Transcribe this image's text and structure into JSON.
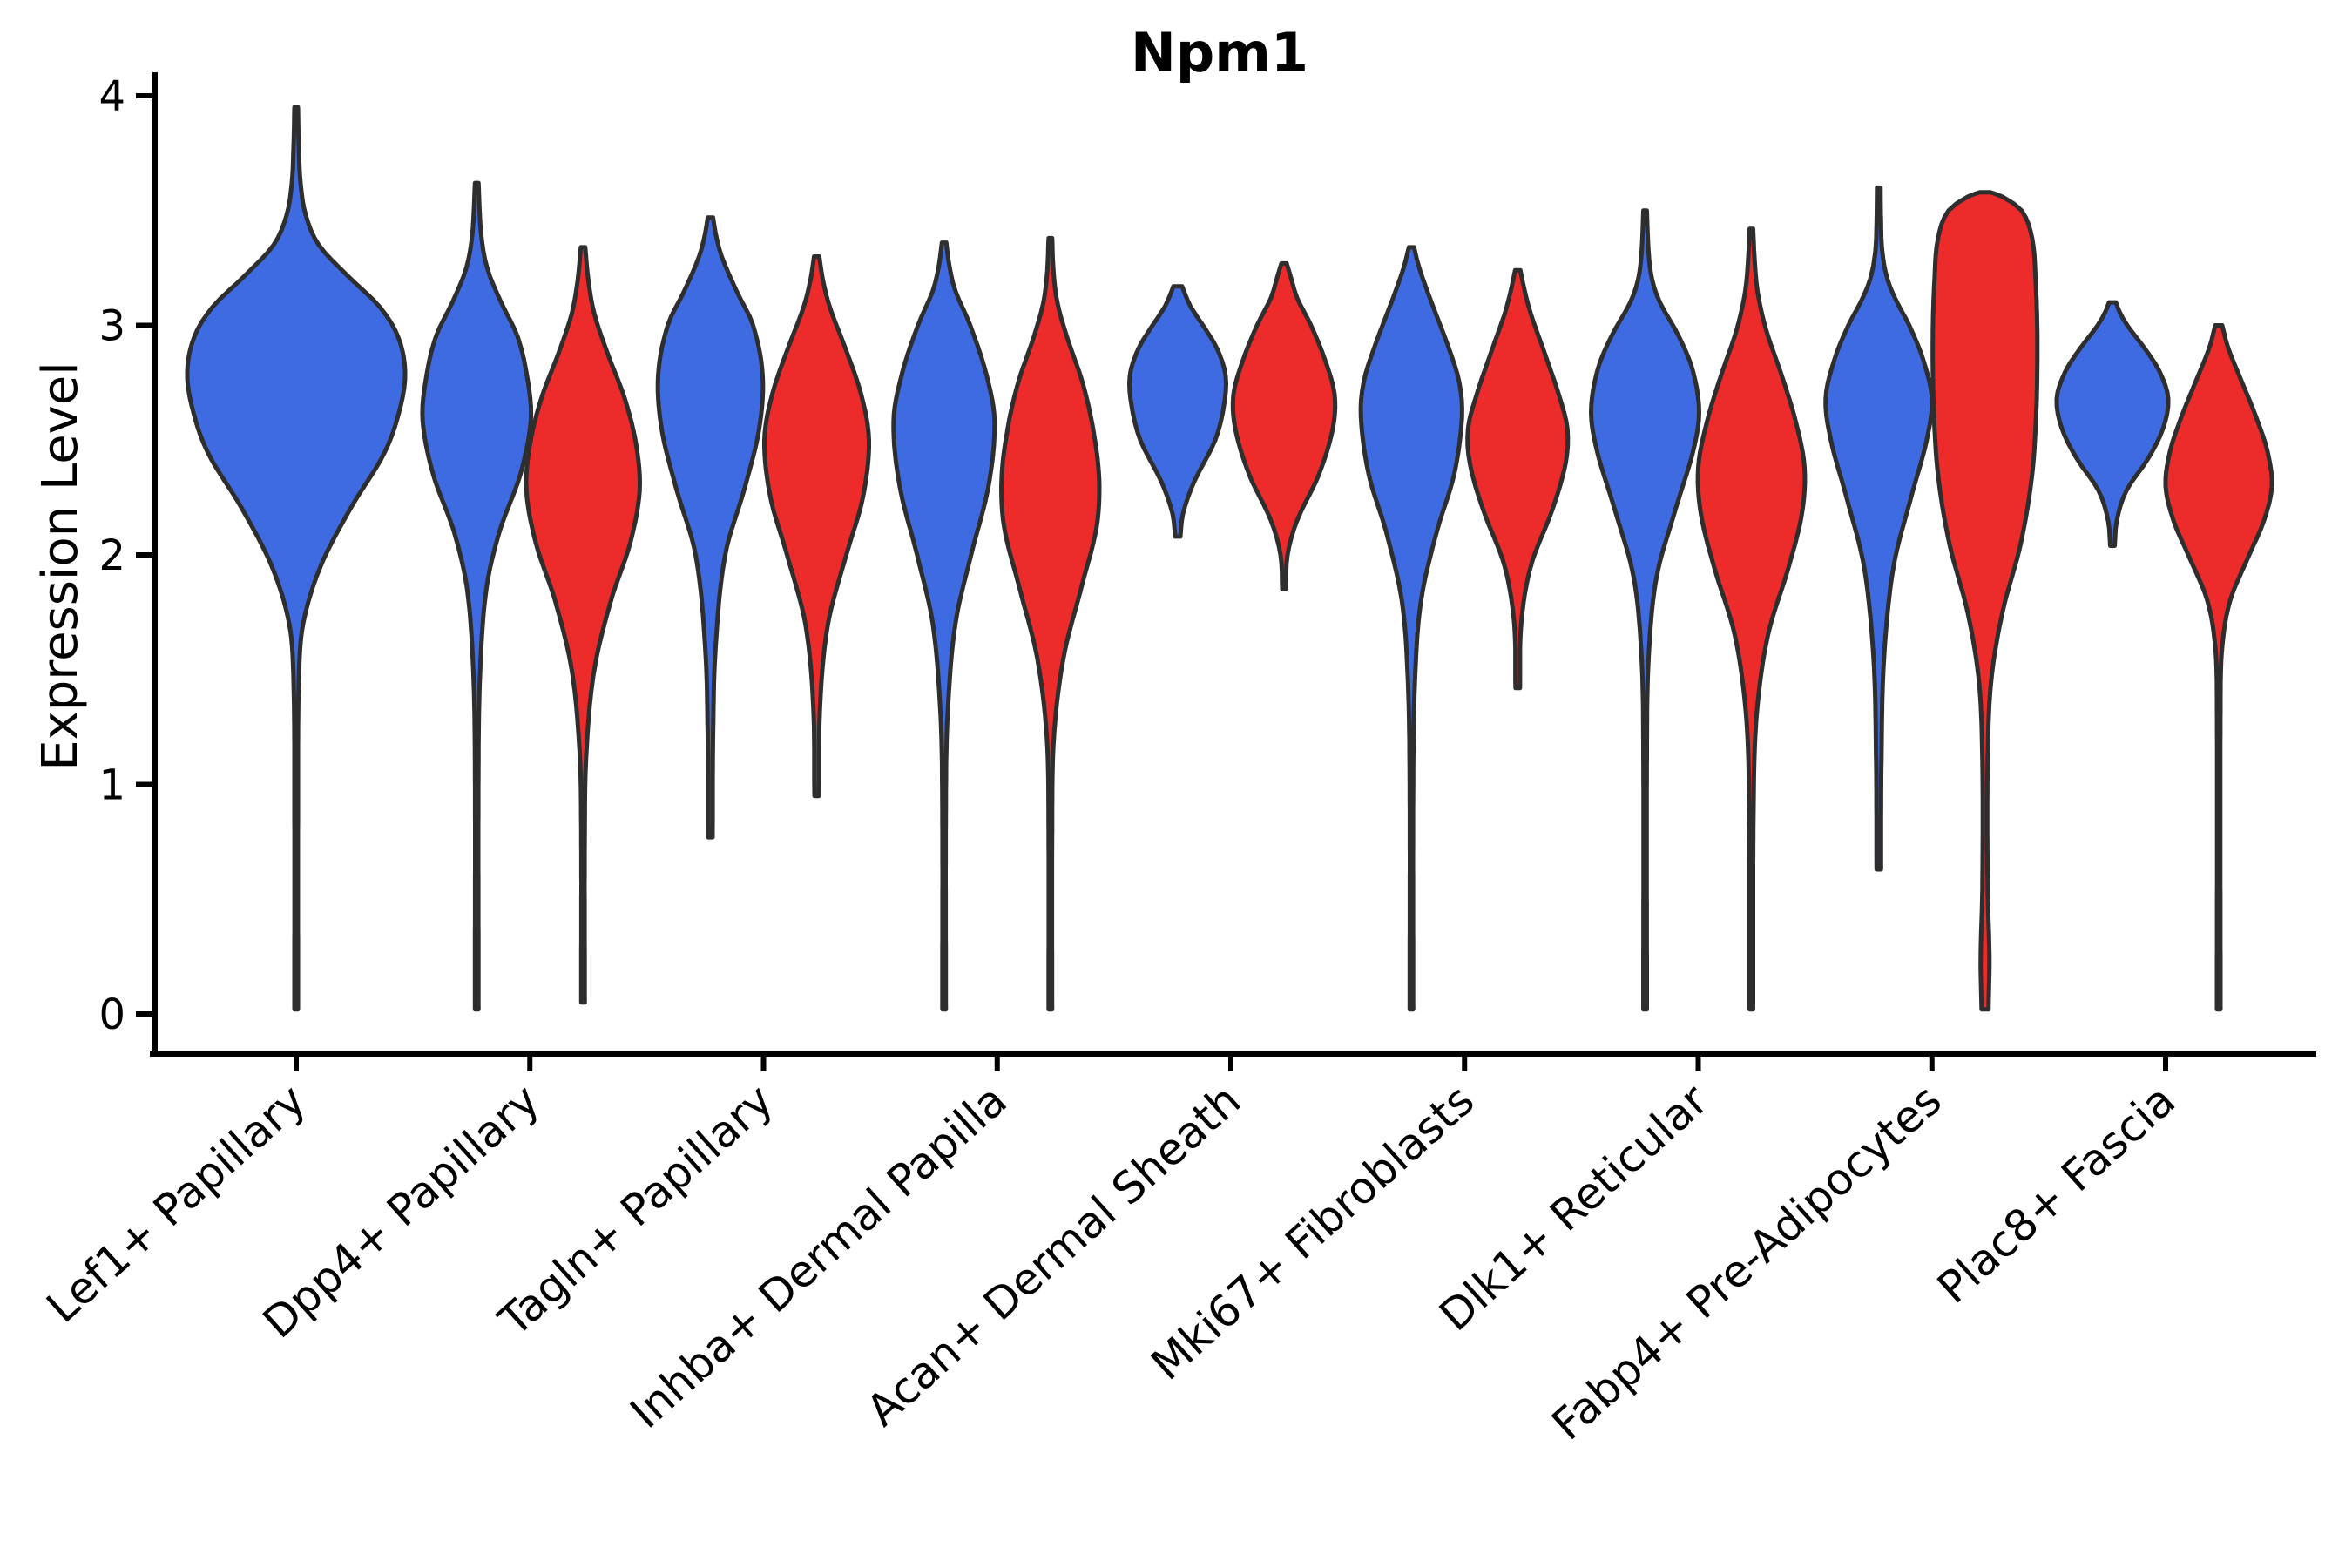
{
  "chart_data": {
    "type": "violin",
    "title": "Npm1",
    "ylabel": "Expression Level",
    "ylim": [
      0,
      4
    ],
    "yticks": [
      0,
      1,
      2,
      3,
      4
    ],
    "categories": [
      "Lef1+ Papillary",
      "Dpp4+ Papillary",
      "Tagln+ Papillary",
      "Inhba+ Dermal Papilla",
      "Acan+ Dermal Sheath",
      "Mki67+ Fibroblasts",
      "Dlk1+ Reticular",
      "Fabp4+ Pre-Adipocytes",
      "Plac8+ Fascia"
    ],
    "hue_colors": {
      "blue": "#3E6BE1",
      "red": "#ED2B2B"
    },
    "outline_color": "#2E2E2E",
    "axis_color": "#000000",
    "legend": "none",
    "grid": false,
    "violins": [
      {
        "category": "Lef1+ Papillary",
        "hue": "blue",
        "side": "center",
        "range": [
          0.02,
          3.95
        ],
        "peak": 2.8,
        "profile": [
          [
            0.02,
            2
          ],
          [
            0.9,
            2
          ],
          [
            1.45,
            3
          ],
          [
            1.7,
            8
          ],
          [
            1.95,
            28
          ],
          [
            2.2,
            62
          ],
          [
            2.45,
            102
          ],
          [
            2.65,
            120
          ],
          [
            2.8,
            125
          ],
          [
            2.95,
            117
          ],
          [
            3.08,
            96
          ],
          [
            3.22,
            58
          ],
          [
            3.35,
            26
          ],
          [
            3.48,
            11
          ],
          [
            3.62,
            5
          ],
          [
            3.78,
            3
          ],
          [
            3.95,
            2
          ]
        ]
      },
      {
        "category": "Dpp4+ Papillary",
        "hue": "blue",
        "side": "left",
        "range": [
          0.02,
          3.62
        ],
        "peak": 2.58,
        "profile": [
          [
            0.02,
            2
          ],
          [
            1.1,
            2
          ],
          [
            1.5,
            4
          ],
          [
            1.85,
            11
          ],
          [
            2.1,
            26
          ],
          [
            2.35,
            50
          ],
          [
            2.58,
            62
          ],
          [
            2.75,
            59
          ],
          [
            2.95,
            47
          ],
          [
            3.1,
            28
          ],
          [
            3.25,
            12
          ],
          [
            3.4,
            5
          ],
          [
            3.62,
            2
          ]
        ]
      },
      {
        "category": "Dpp4+ Papillary",
        "hue": "red",
        "side": "right",
        "range": [
          0.05,
          3.34
        ],
        "peak": 2.28,
        "profile": [
          [
            0.05,
            2
          ],
          [
            0.8,
            2
          ],
          [
            1.15,
            4
          ],
          [
            1.5,
            13
          ],
          [
            1.8,
            32
          ],
          [
            2.05,
            54
          ],
          [
            2.28,
            65
          ],
          [
            2.48,
            61
          ],
          [
            2.68,
            48
          ],
          [
            2.88,
            28
          ],
          [
            3.05,
            13
          ],
          [
            3.2,
            6
          ],
          [
            3.34,
            2.5
          ]
        ]
      },
      {
        "category": "Tagln+ Papillary",
        "hue": "blue",
        "side": "left",
        "range": [
          0.77,
          3.47
        ],
        "peak": 2.78,
        "profile": [
          [
            0.77,
            2.5
          ],
          [
            1.2,
            3
          ],
          [
            1.6,
            6
          ],
          [
            2.0,
            17
          ],
          [
            2.3,
            40
          ],
          [
            2.55,
            56
          ],
          [
            2.78,
            60
          ],
          [
            3.0,
            49
          ],
          [
            3.15,
            30
          ],
          [
            3.3,
            13
          ],
          [
            3.4,
            6
          ],
          [
            3.47,
            3
          ]
        ]
      },
      {
        "category": "Tagln+ Papillary",
        "hue": "red",
        "side": "right",
        "range": [
          0.95,
          3.3
        ],
        "peak": 2.5,
        "profile": [
          [
            0.95,
            2.5
          ],
          [
            1.35,
            4
          ],
          [
            1.7,
            13
          ],
          [
            2.0,
            34
          ],
          [
            2.25,
            53
          ],
          [
            2.5,
            60
          ],
          [
            2.7,
            51
          ],
          [
            2.9,
            33
          ],
          [
            3.08,
            15
          ],
          [
            3.2,
            7
          ],
          [
            3.3,
            3
          ]
        ]
      },
      {
        "category": "Inhba+ Dermal Papilla",
        "hue": "blue",
        "side": "left",
        "range": [
          0.02,
          3.36
        ],
        "peak": 2.58,
        "profile": [
          [
            0.02,
            2
          ],
          [
            0.9,
            2
          ],
          [
            1.3,
            4
          ],
          [
            1.7,
            13
          ],
          [
            2.0,
            31
          ],
          [
            2.3,
            51
          ],
          [
            2.58,
            58
          ],
          [
            2.78,
            49
          ],
          [
            3.0,
            30
          ],
          [
            3.15,
            13
          ],
          [
            3.26,
            6
          ],
          [
            3.36,
            2.5
          ]
        ]
      },
      {
        "category": "Inhba+ Dermal Papilla",
        "hue": "red",
        "side": "right",
        "range": [
          0.02,
          3.38
        ],
        "peak": 2.33,
        "profile": [
          [
            0.02,
            2
          ],
          [
            0.8,
            2
          ],
          [
            1.2,
            4
          ],
          [
            1.55,
            15
          ],
          [
            1.85,
            35
          ],
          [
            2.12,
            53
          ],
          [
            2.33,
            56
          ],
          [
            2.55,
            49
          ],
          [
            2.75,
            37
          ],
          [
            2.95,
            19
          ],
          [
            3.1,
            8
          ],
          [
            3.24,
            3.5
          ],
          [
            3.38,
            2
          ]
        ]
      },
      {
        "category": "Acan+ Dermal Sheath",
        "hue": "blue",
        "side": "left",
        "range": [
          2.08,
          3.17
        ],
        "peak": 2.78,
        "profile": [
          [
            2.08,
            3
          ],
          [
            2.18,
            6
          ],
          [
            2.32,
            19
          ],
          [
            2.5,
            43
          ],
          [
            2.65,
            53
          ],
          [
            2.78,
            55
          ],
          [
            2.9,
            45
          ],
          [
            3.0,
            29
          ],
          [
            3.08,
            15
          ],
          [
            3.14,
            8
          ],
          [
            3.17,
            5
          ]
        ]
      },
      {
        "category": "Acan+ Dermal Sheath",
        "hue": "red",
        "side": "right",
        "range": [
          1.85,
          3.27
        ],
        "peak": 2.7,
        "profile": [
          [
            1.85,
            2
          ],
          [
            2.0,
            4
          ],
          [
            2.15,
            15
          ],
          [
            2.35,
            40
          ],
          [
            2.55,
            56
          ],
          [
            2.7,
            58
          ],
          [
            2.85,
            47
          ],
          [
            3.0,
            31
          ],
          [
            3.12,
            15
          ],
          [
            3.22,
            7
          ],
          [
            3.27,
            3
          ]
        ]
      },
      {
        "category": "Mki67+ Fibroblasts",
        "hue": "blue",
        "side": "left",
        "range": [
          0.02,
          3.34
        ],
        "peak": 2.6,
        "profile": [
          [
            0.02,
            2
          ],
          [
            1.0,
            2
          ],
          [
            1.45,
            4
          ],
          [
            1.8,
            11
          ],
          [
            2.1,
            29
          ],
          [
            2.35,
            49
          ],
          [
            2.6,
            58
          ],
          [
            2.75,
            55
          ],
          [
            2.9,
            43
          ],
          [
            3.1,
            23
          ],
          [
            3.25,
            9
          ],
          [
            3.34,
            3
          ]
        ]
      },
      {
        "category": "Mki67+ Fibroblasts",
        "hue": "red",
        "side": "right",
        "range": [
          1.42,
          3.24
        ],
        "peak": 2.55,
        "profile": [
          [
            1.42,
            2.5
          ],
          [
            1.7,
            4
          ],
          [
            1.95,
            15
          ],
          [
            2.2,
            40
          ],
          [
            2.4,
            55
          ],
          [
            2.55,
            57
          ],
          [
            2.7,
            47
          ],
          [
            2.9,
            29
          ],
          [
            3.05,
            15
          ],
          [
            3.15,
            8
          ],
          [
            3.24,
            3
          ]
        ]
      },
      {
        "category": "Dlk1+ Reticular",
        "hue": "blue",
        "side": "left",
        "range": [
          0.02,
          3.5
        ],
        "peak": 2.62,
        "profile": [
          [
            0.02,
            2
          ],
          [
            1.15,
            2
          ],
          [
            1.55,
            4
          ],
          [
            1.9,
            13
          ],
          [
            2.2,
            35
          ],
          [
            2.45,
            55
          ],
          [
            2.62,
            62
          ],
          [
            2.8,
            55
          ],
          [
            2.95,
            39
          ],
          [
            3.1,
            17
          ],
          [
            3.2,
            8
          ],
          [
            3.32,
            4
          ],
          [
            3.5,
            2
          ]
        ]
      },
      {
        "category": "Dlk1+ Reticular",
        "hue": "red",
        "side": "right",
        "range": [
          0.02,
          3.42
        ],
        "peak": 2.38,
        "profile": [
          [
            0.02,
            2
          ],
          [
            0.9,
            2.5
          ],
          [
            1.3,
            6
          ],
          [
            1.65,
            19
          ],
          [
            1.95,
            43
          ],
          [
            2.18,
            58
          ],
          [
            2.38,
            61
          ],
          [
            2.58,
            51
          ],
          [
            2.78,
            35
          ],
          [
            2.98,
            17
          ],
          [
            3.15,
            7
          ],
          [
            3.3,
            3.5
          ],
          [
            3.42,
            2
          ]
        ]
      },
      {
        "category": "Fabp4+ Pre-Adipocytes",
        "hue": "blue",
        "side": "left",
        "range": [
          0.63,
          3.6
        ],
        "peak": 2.68,
        "profile": [
          [
            0.63,
            2.5
          ],
          [
            1.1,
            3
          ],
          [
            1.55,
            6
          ],
          [
            1.95,
            17
          ],
          [
            2.25,
            37
          ],
          [
            2.5,
            55
          ],
          [
            2.68,
            61
          ],
          [
            2.85,
            51
          ],
          [
            3.0,
            35
          ],
          [
            3.1,
            21
          ],
          [
            3.2,
            10
          ],
          [
            3.32,
            4
          ],
          [
            3.45,
            2.5
          ],
          [
            3.6,
            2
          ]
        ]
      },
      {
        "category": "Fabp4+ Pre-Adipocytes",
        "hue": "red",
        "side": "right",
        "range": [
          0.02,
          3.58
        ],
        "peak": 2.95,
        "profile": [
          [
            0.02,
            4
          ],
          [
            0.25,
            5
          ],
          [
            0.55,
            3
          ],
          [
            1.1,
            3
          ],
          [
            1.45,
            7
          ],
          [
            1.75,
            20
          ],
          [
            2.05,
            41
          ],
          [
            2.35,
            54
          ],
          [
            2.65,
            59
          ],
          [
            2.95,
            60
          ],
          [
            3.2,
            58
          ],
          [
            3.38,
            54
          ],
          [
            3.5,
            42
          ],
          [
            3.56,
            20
          ],
          [
            3.58,
            6
          ]
        ]
      },
      {
        "category": "Plac8+ Fascia",
        "hue": "blue",
        "side": "left",
        "range": [
          2.04,
          3.1
        ],
        "peak": 2.68,
        "profile": [
          [
            2.04,
            2.5
          ],
          [
            2.15,
            5
          ],
          [
            2.28,
            16
          ],
          [
            2.42,
            41
          ],
          [
            2.55,
            58
          ],
          [
            2.68,
            64
          ],
          [
            2.8,
            54
          ],
          [
            2.9,
            37
          ],
          [
            3.0,
            17
          ],
          [
            3.06,
            8
          ],
          [
            3.1,
            4
          ]
        ]
      },
      {
        "category": "Plac8+ Fascia",
        "hue": "red",
        "side": "right",
        "range": [
          0.02,
          3.0
        ],
        "peak": 2.3,
        "profile": [
          [
            0.02,
            2
          ],
          [
            1.35,
            2
          ],
          [
            1.6,
            4
          ],
          [
            1.8,
            13
          ],
          [
            2.0,
            35
          ],
          [
            2.15,
            52
          ],
          [
            2.3,
            61
          ],
          [
            2.45,
            56
          ],
          [
            2.6,
            43
          ],
          [
            2.75,
            27
          ],
          [
            2.9,
            11
          ],
          [
            3.0,
            4
          ]
        ]
      }
    ]
  }
}
